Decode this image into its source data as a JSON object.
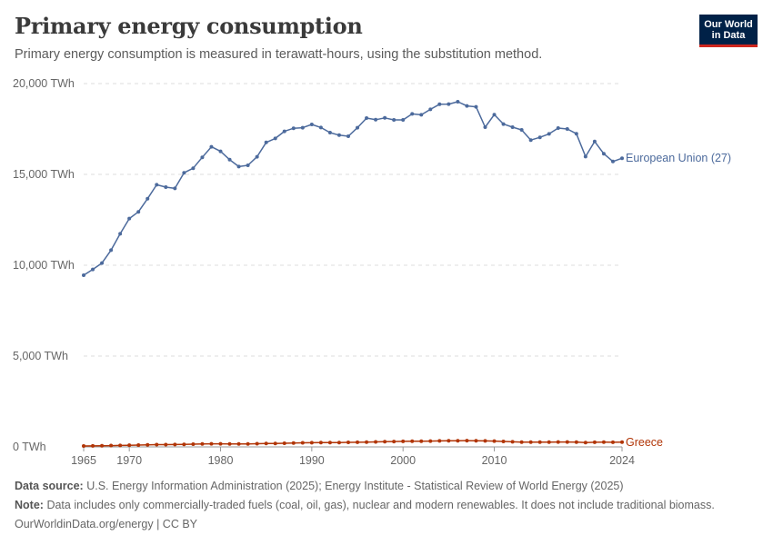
{
  "header": {
    "title": "Primary energy consumption",
    "subtitle": "Primary energy consumption is measured in terawatt-hours, using the substitution method.",
    "logo_line1": "Our World",
    "logo_line2": "in Data"
  },
  "footer": {
    "source_label": "Data source:",
    "source_text": "U.S. Energy Information Administration (2025); Energy Institute - Statistical Review of World Energy (2025)",
    "note_label": "Note:",
    "note_text": "Data includes only commercially-traded fuels (coal, oil, gas), nuclear and modern renewables. It does not include traditional biomass.",
    "credit": "OurWorldinData.org/energy | CC BY"
  },
  "chart_data": {
    "type": "line",
    "title": "Primary energy consumption",
    "xlabel": "",
    "ylabel": "",
    "x": [
      1965,
      1966,
      1967,
      1968,
      1969,
      1970,
      1971,
      1972,
      1973,
      1974,
      1975,
      1976,
      1977,
      1978,
      1979,
      1980,
      1981,
      1982,
      1983,
      1984,
      1985,
      1986,
      1987,
      1988,
      1989,
      1990,
      1991,
      1992,
      1993,
      1994,
      1995,
      1996,
      1997,
      1998,
      1999,
      2000,
      2001,
      2002,
      2003,
      2004,
      2005,
      2006,
      2007,
      2008,
      2009,
      2010,
      2011,
      2012,
      2013,
      2014,
      2015,
      2016,
      2017,
      2018,
      2019,
      2020,
      2021,
      2022,
      2023,
      2024
    ],
    "xlim": [
      1965,
      2024
    ],
    "ylim": [
      0,
      20000
    ],
    "x_ticks": [
      "1965",
      "1970",
      "1980",
      "1990",
      "2000",
      "2010",
      "2024"
    ],
    "x_tick_values": [
      1965,
      1970,
      1980,
      1990,
      2000,
      2010,
      2024
    ],
    "y_ticks": [
      "0 TWh",
      "5,000 TWh",
      "10,000 TWh",
      "15,000 TWh",
      "20,000 TWh"
    ],
    "y_tick_values": [
      0,
      5000,
      10000,
      15000,
      20000
    ],
    "grid": true,
    "legend": "end-of-line labels",
    "series": [
      {
        "name": "European Union (27)",
        "color": "#4c6a9c",
        "values": [
          9450,
          9770,
          10120,
          10830,
          11730,
          12570,
          12940,
          13660,
          14430,
          14300,
          14230,
          15090,
          15340,
          15940,
          16520,
          16270,
          15810,
          15430,
          15500,
          15970,
          16760,
          16980,
          17370,
          17540,
          17570,
          17750,
          17580,
          17300,
          17160,
          17100,
          17570,
          18100,
          18010,
          18110,
          18000,
          18000,
          18330,
          18280,
          18580,
          18860,
          18870,
          19000,
          18770,
          18720,
          17600,
          18290,
          17770,
          17600,
          17450,
          16890,
          17040,
          17230,
          17550,
          17500,
          17240,
          15980,
          16810,
          16140,
          15710,
          15890
        ]
      },
      {
        "name": "Greece",
        "color": "#b13507",
        "values": [
          50,
          55,
          62,
          72,
          82,
          92,
          100,
          110,
          125,
          125,
          132,
          140,
          150,
          160,
          168,
          170,
          165,
          160,
          165,
          175,
          185,
          190,
          200,
          210,
          225,
          230,
          235,
          240,
          240,
          250,
          255,
          265,
          275,
          285,
          295,
          305,
          310,
          315,
          320,
          330,
          335,
          340,
          345,
          340,
          330,
          320,
          300,
          280,
          265,
          260,
          260,
          265,
          270,
          270,
          265,
          240,
          255,
          260,
          255,
          260
        ]
      }
    ]
  }
}
